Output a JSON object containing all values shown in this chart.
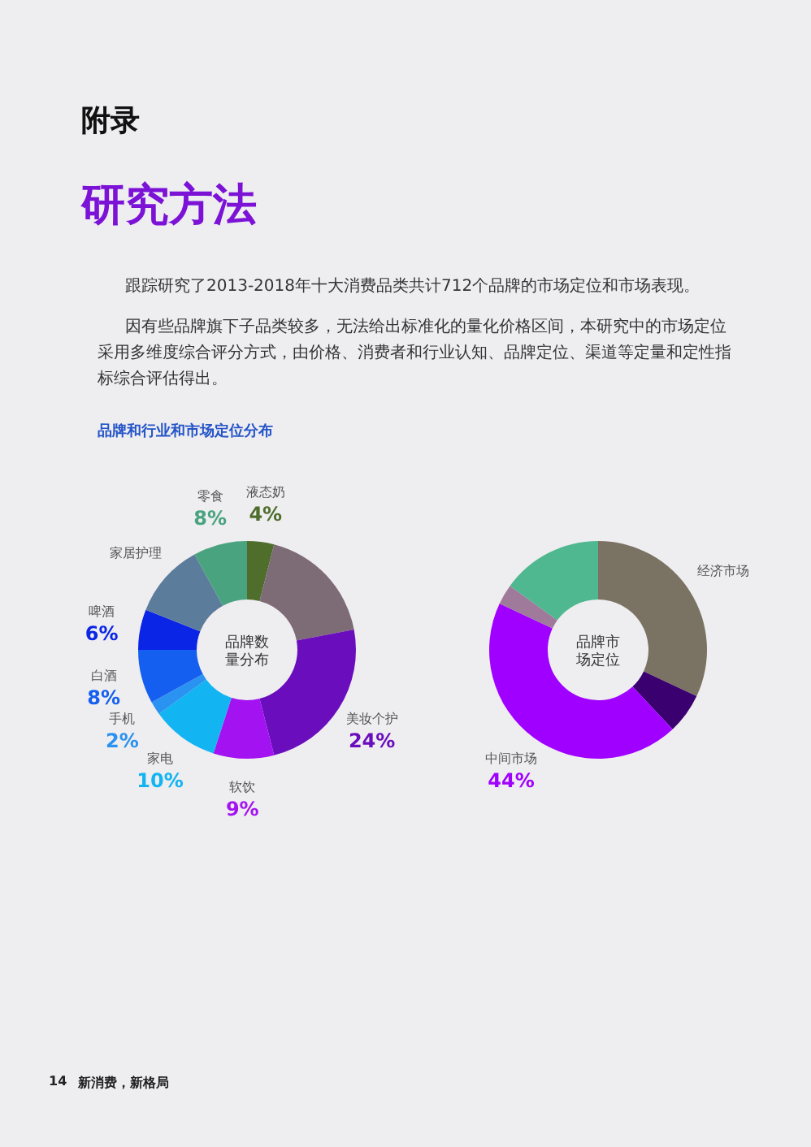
{
  "chart_data": [
    {
      "type": "donut",
      "title": "品牌数量分布",
      "categories": [
        "液态奶",
        null,
        "美妆个护",
        "软饮",
        "家电",
        "手机",
        "白酒",
        "啤酒",
        "家居护理",
        "零食"
      ],
      "values": [
        4,
        18,
        24,
        9,
        10,
        2,
        8,
        6,
        11,
        8
      ],
      "value_labels": [
        "4%",
        null,
        "24%",
        "9%",
        "10%",
        "2%",
        "8%",
        "6%",
        null,
        "8%"
      ],
      "colors": [
        "#4f6e2c",
        "#7d6b76",
        "#6a0dbd",
        "#a313f2",
        "#12b4f2",
        "#2a92f0",
        "#145ff0",
        "#0a25e6",
        "#5c7c9c",
        "#4aa37f"
      ],
      "annotations": [
        "附录",
        "研究方法",
        "跟踪研究了2013-2018年十大消费品类共计712个品牌的市场定位和市场表现。",
        "因有些品牌旗下子品类较多，无法给出标准化的量化价格区间，本研究中的市场定位采用多维度综合评分方式，由价格、消费者和行业认知、品牌定位、渠道等定量和定性指标综合评估得出。",
        "品牌和行业和市场定位分布",
        "14",
        "新消费，新格局"
      ]
    },
    {
      "type": "donut",
      "title": "品牌市场定位",
      "categories": [
        "经济市场",
        null,
        "中间市场",
        null,
        null
      ],
      "values": [
        32,
        6,
        44,
        3,
        15
      ],
      "value_labels": [
        null,
        null,
        "44%",
        null,
        null
      ],
      "colors": [
        "#7a7262",
        "#3a0070",
        "#a000ff",
        "#a07a9a",
        "#4fb890"
      ]
    }
  ]
}
